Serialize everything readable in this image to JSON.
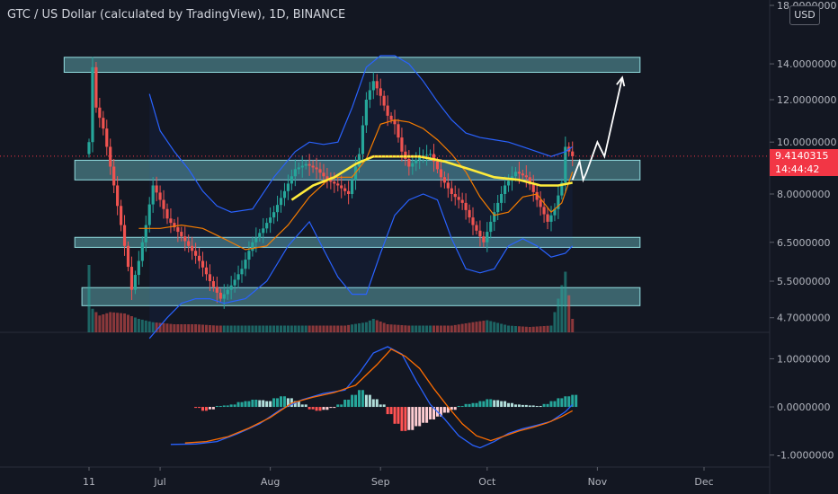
{
  "header": {
    "title": "GTC / US Dollar (calculated by TradingView), 1D, BINANCE",
    "currency_button": "USD"
  },
  "last_price": {
    "value": "9.4140315",
    "countdown": "14:44:42"
  },
  "colors": {
    "background": "#131722",
    "up_candle": "#26a69a",
    "down_candle": "#ef5350",
    "bollinger": "#2962ff",
    "ema_orange": "#f57c00",
    "ma_yellow": "#ffeb3b",
    "zone_fill": "#7fe0e6",
    "price_tag": "#f23645",
    "axis_text": "#b2b5be"
  },
  "chart_data": [
    {
      "type": "candlestick",
      "pair": "GTC / US Dollar",
      "timeframe": "1D",
      "exchange": "BINANCE",
      "y_axis_ticks": [
        "18.0000000",
        "14.0000000",
        "12.0000000",
        "10.0000000",
        "8.0000000",
        "6.5000000",
        "5.5000000",
        "4.7000000"
      ],
      "x_axis_ticks": [
        "11",
        "Jul",
        "Aug",
        "Sep",
        "Oct",
        "Nov",
        "Dec"
      ],
      "ylim": [
        4.5,
        18.0
      ],
      "scale": "log",
      "x_range_days": [
        0,
        181
      ],
      "x_tick_days": [
        0,
        20,
        51,
        82,
        112,
        143,
        173
      ],
      "close_series": [
        [
          0,
          10.0
        ],
        [
          1,
          13.8
        ],
        [
          2,
          11.6
        ],
        [
          4,
          10.6
        ],
        [
          6,
          9.0
        ],
        [
          8,
          7.6
        ],
        [
          10,
          6.4
        ],
        [
          12,
          5.3
        ],
        [
          14,
          6.0
        ],
        [
          16,
          7.0
        ],
        [
          18,
          8.3
        ],
        [
          20,
          7.8
        ],
        [
          22,
          7.2
        ],
        [
          25,
          6.8
        ],
        [
          28,
          6.4
        ],
        [
          31,
          6.0
        ],
        [
          34,
          5.5
        ],
        [
          37,
          5.1
        ],
        [
          40,
          5.4
        ],
        [
          43,
          5.8
        ],
        [
          46,
          6.5
        ],
        [
          49,
          6.9
        ],
        [
          52,
          7.4
        ],
        [
          55,
          8.1
        ],
        [
          58,
          8.9
        ],
        [
          61,
          9.1
        ],
        [
          64,
          8.9
        ],
        [
          67,
          8.5
        ],
        [
          70,
          8.3
        ],
        [
          73,
          8.0
        ],
        [
          76,
          9.5
        ],
        [
          78,
          12.0
        ],
        [
          80,
          13.0
        ],
        [
          82,
          12.2
        ],
        [
          84,
          11.2
        ],
        [
          86,
          10.8
        ],
        [
          88,
          9.6
        ],
        [
          90,
          9.0
        ],
        [
          93,
          9.4
        ],
        [
          96,
          9.5
        ],
        [
          99,
          8.6
        ],
        [
          102,
          8.0
        ],
        [
          105,
          7.7
        ],
        [
          108,
          7.0
        ],
        [
          111,
          6.5
        ],
        [
          114,
          7.4
        ],
        [
          117,
          8.3
        ],
        [
          120,
          8.8
        ],
        [
          123,
          8.6
        ],
        [
          126,
          7.8
        ],
        [
          129,
          7.1
        ],
        [
          131,
          7.5
        ],
        [
          133,
          8.4
        ],
        [
          134,
          9.8
        ],
        [
          136,
          9.41
        ]
      ],
      "volume_series": [
        [
          0,
          1.0
        ],
        [
          1,
          0.35
        ],
        [
          3,
          0.25
        ],
        [
          6,
          0.3
        ],
        [
          10,
          0.28
        ],
        [
          14,
          0.2
        ],
        [
          18,
          0.15
        ],
        [
          24,
          0.12
        ],
        [
          30,
          0.12
        ],
        [
          36,
          0.1
        ],
        [
          42,
          0.1
        ],
        [
          48,
          0.1
        ],
        [
          54,
          0.1
        ],
        [
          60,
          0.1
        ],
        [
          66,
          0.1
        ],
        [
          72,
          0.1
        ],
        [
          78,
          0.15
        ],
        [
          80,
          0.2
        ],
        [
          84,
          0.12
        ],
        [
          90,
          0.1
        ],
        [
          96,
          0.1
        ],
        [
          102,
          0.1
        ],
        [
          108,
          0.15
        ],
        [
          112,
          0.18
        ],
        [
          118,
          0.1
        ],
        [
          124,
          0.08
        ],
        [
          130,
          0.1
        ],
        [
          134,
          0.9
        ],
        [
          136,
          0.2
        ]
      ],
      "moving_average_yellow": [
        [
          57,
          7.8
        ],
        [
          63,
          8.3
        ],
        [
          69,
          8.6
        ],
        [
          75,
          9.1
        ],
        [
          80,
          9.4
        ],
        [
          86,
          9.4
        ],
        [
          93,
          9.4
        ],
        [
          100,
          9.2
        ],
        [
          107,
          8.9
        ],
        [
          114,
          8.6
        ],
        [
          121,
          8.5
        ],
        [
          127,
          8.3
        ],
        [
          132,
          8.3
        ],
        [
          136,
          8.4
        ]
      ],
      "ema_orange": [
        [
          14,
          6.9
        ],
        [
          20,
          6.9
        ],
        [
          26,
          7.0
        ],
        [
          32,
          6.9
        ],
        [
          38,
          6.6
        ],
        [
          44,
          6.3
        ],
        [
          50,
          6.4
        ],
        [
          56,
          7.0
        ],
        [
          62,
          7.9
        ],
        [
          68,
          8.6
        ],
        [
          74,
          8.6
        ],
        [
          78,
          9.3
        ],
        [
          82,
          10.8
        ],
        [
          86,
          11.0
        ],
        [
          90,
          10.9
        ],
        [
          94,
          10.6
        ],
        [
          98,
          10.1
        ],
        [
          102,
          9.5
        ],
        [
          106,
          8.8
        ],
        [
          110,
          7.9
        ],
        [
          114,
          7.3
        ],
        [
          118,
          7.4
        ],
        [
          122,
          7.9
        ],
        [
          126,
          8.0
        ],
        [
          130,
          7.4
        ],
        [
          133,
          7.7
        ],
        [
          136,
          8.8
        ]
      ],
      "bollinger_upper": [
        [
          17,
          12.3
        ],
        [
          20,
          10.5
        ],
        [
          24,
          9.6
        ],
        [
          28,
          8.9
        ],
        [
          32,
          8.1
        ],
        [
          36,
          7.6
        ],
        [
          40,
          7.4
        ],
        [
          46,
          7.5
        ],
        [
          52,
          8.6
        ],
        [
          58,
          9.6
        ],
        [
          62,
          10.0
        ],
        [
          66,
          9.9
        ],
        [
          70,
          10.0
        ],
        [
          74,
          11.6
        ],
        [
          78,
          13.8
        ],
        [
          82,
          14.5
        ],
        [
          86,
          14.5
        ],
        [
          90,
          14.0
        ],
        [
          94,
          13.0
        ],
        [
          98,
          11.9
        ],
        [
          102,
          11.0
        ],
        [
          106,
          10.4
        ],
        [
          110,
          10.2
        ],
        [
          114,
          10.1
        ],
        [
          118,
          10.0
        ],
        [
          122,
          9.8
        ],
        [
          126,
          9.6
        ],
        [
          130,
          9.4
        ],
        [
          134,
          9.6
        ],
        [
          136,
          9.8
        ]
      ],
      "bollinger_lower": [
        [
          17,
          4.3
        ],
        [
          22,
          4.7
        ],
        [
          26,
          5.0
        ],
        [
          30,
          5.1
        ],
        [
          34,
          5.1
        ],
        [
          38,
          5.0
        ],
        [
          44,
          5.1
        ],
        [
          50,
          5.5
        ],
        [
          56,
          6.4
        ],
        [
          62,
          7.1
        ],
        [
          66,
          6.3
        ],
        [
          70,
          5.6
        ],
        [
          74,
          5.2
        ],
        [
          78,
          5.2
        ],
        [
          82,
          6.2
        ],
        [
          86,
          7.3
        ],
        [
          90,
          7.8
        ],
        [
          94,
          8.0
        ],
        [
          98,
          7.8
        ],
        [
          102,
          6.6
        ],
        [
          106,
          5.8
        ],
        [
          110,
          5.7
        ],
        [
          114,
          5.8
        ],
        [
          118,
          6.4
        ],
        [
          122,
          6.6
        ],
        [
          126,
          6.4
        ],
        [
          130,
          6.1
        ],
        [
          134,
          6.2
        ],
        [
          136,
          6.4
        ]
      ],
      "horizontal_zones": [
        {
          "from_day": -7,
          "to_day": 155,
          "low": 13.5,
          "high": 14.4
        },
        {
          "from_day": -4,
          "to_day": 155,
          "low": 8.5,
          "high": 9.25
        },
        {
          "from_day": -4,
          "to_day": 155,
          "low": 6.36,
          "high": 6.64
        },
        {
          "from_day": -2,
          "to_day": 155,
          "low": 4.95,
          "high": 5.35
        }
      ],
      "projection_path": [
        [
          136,
          8.5
        ],
        [
          138,
          9.2
        ],
        [
          139,
          8.5
        ],
        [
          140,
          8.8
        ],
        [
          143,
          10.0
        ],
        [
          145,
          9.4
        ],
        [
          150,
          13.2
        ]
      ]
    },
    {
      "type": "macd",
      "y_axis_ticks": [
        "1.0000000",
        "0.0000000",
        "-1.0000000"
      ],
      "ylim": [
        -1.1,
        1.4
      ],
      "macd_line": [
        [
          23,
          -0.78
        ],
        [
          30,
          -0.77
        ],
        [
          36,
          -0.72
        ],
        [
          42,
          -0.55
        ],
        [
          48,
          -0.35
        ],
        [
          54,
          -0.05
        ],
        [
          60,
          0.15
        ],
        [
          66,
          0.28
        ],
        [
          72,
          0.35
        ],
        [
          76,
          0.7
        ],
        [
          80,
          1.12
        ],
        [
          84,
          1.25
        ],
        [
          88,
          1.1
        ],
        [
          92,
          0.55
        ],
        [
          96,
          0.05
        ],
        [
          100,
          -0.25
        ],
        [
          104,
          -0.6
        ],
        [
          108,
          -0.8
        ],
        [
          110,
          -0.85
        ],
        [
          114,
          -0.72
        ],
        [
          118,
          -0.55
        ],
        [
          122,
          -0.45
        ],
        [
          126,
          -0.38
        ],
        [
          130,
          -0.3
        ],
        [
          134,
          -0.1
        ],
        [
          136,
          0.05
        ]
      ],
      "signal_line": [
        [
          27,
          -0.75
        ],
        [
          33,
          -0.72
        ],
        [
          39,
          -0.62
        ],
        [
          45,
          -0.44
        ],
        [
          51,
          -0.22
        ],
        [
          57,
          0.08
        ],
        [
          63,
          0.2
        ],
        [
          69,
          0.3
        ],
        [
          75,
          0.45
        ],
        [
          81,
          0.88
        ],
        [
          85,
          1.2
        ],
        [
          89,
          1.05
        ],
        [
          93,
          0.8
        ],
        [
          97,
          0.38
        ],
        [
          101,
          0.0
        ],
        [
          105,
          -0.35
        ],
        [
          109,
          -0.6
        ],
        [
          113,
          -0.7
        ],
        [
          117,
          -0.6
        ],
        [
          121,
          -0.5
        ],
        [
          125,
          -0.42
        ],
        [
          129,
          -0.33
        ],
        [
          133,
          -0.2
        ],
        [
          136,
          -0.08
        ]
      ],
      "histogram": [
        [
          30,
          -0.02
        ],
        [
          32,
          -0.08
        ],
        [
          34,
          -0.05
        ],
        [
          36,
          0.02
        ],
        [
          38,
          0.03
        ],
        [
          40,
          0.05
        ],
        [
          42,
          0.1
        ],
        [
          44,
          0.12
        ],
        [
          46,
          0.15
        ],
        [
          48,
          0.14
        ],
        [
          50,
          0.12
        ],
        [
          52,
          0.18
        ],
        [
          54,
          0.22
        ],
        [
          56,
          0.18
        ],
        [
          58,
          0.12
        ],
        [
          60,
          0.05
        ],
        [
          62,
          -0.05
        ],
        [
          64,
          -0.08
        ],
        [
          66,
          -0.06
        ],
        [
          68,
          -0.02
        ],
        [
          70,
          0.05
        ],
        [
          72,
          0.15
        ],
        [
          74,
          0.25
        ],
        [
          76,
          0.35
        ],
        [
          78,
          0.25
        ],
        [
          80,
          0.16
        ],
        [
          82,
          0.05
        ],
        [
          84,
          -0.15
        ],
        [
          86,
          -0.35
        ],
        [
          88,
          -0.5
        ],
        [
          90,
          -0.48
        ],
        [
          92,
          -0.4
        ],
        [
          94,
          -0.33
        ],
        [
          96,
          -0.26
        ],
        [
          98,
          -0.2
        ],
        [
          100,
          -0.12
        ],
        [
          102,
          -0.06
        ],
        [
          104,
          0.02
        ],
        [
          106,
          0.06
        ],
        [
          108,
          0.08
        ],
        [
          110,
          0.12
        ],
        [
          112,
          0.16
        ],
        [
          114,
          0.14
        ],
        [
          116,
          0.12
        ],
        [
          118,
          0.08
        ],
        [
          120,
          0.05
        ],
        [
          122,
          0.04
        ],
        [
          124,
          0.03
        ],
        [
          126,
          0.02
        ],
        [
          128,
          0.06
        ],
        [
          130,
          0.12
        ],
        [
          132,
          0.18
        ],
        [
          134,
          0.22
        ],
        [
          136,
          0.25
        ]
      ]
    }
  ]
}
